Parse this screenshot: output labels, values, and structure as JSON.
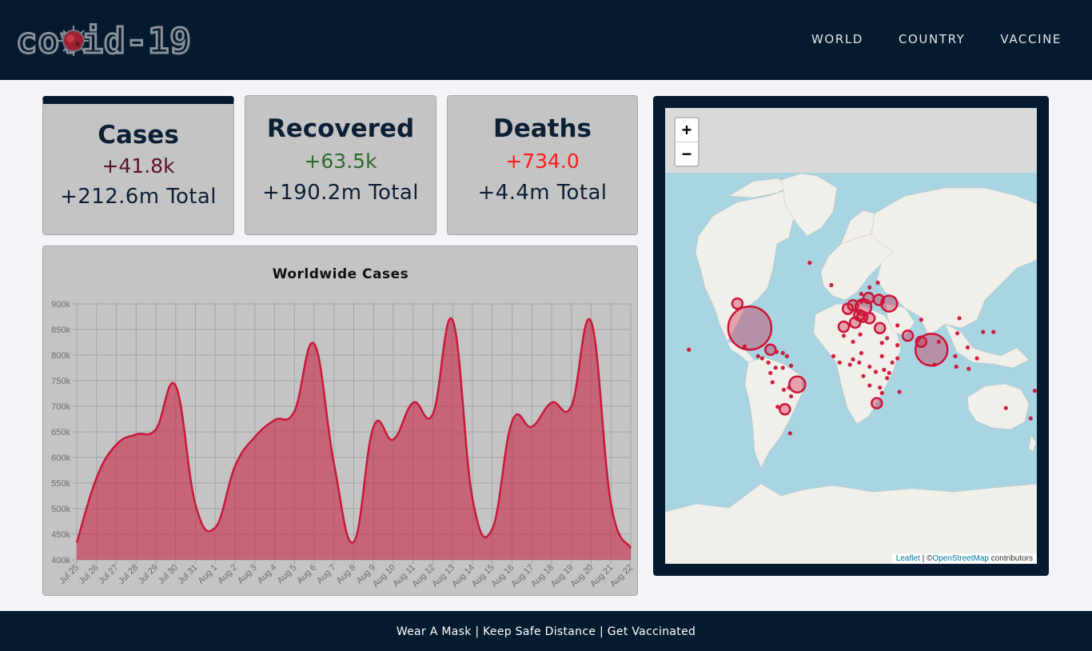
{
  "header": {
    "logo_text": "covid-19",
    "nav": [
      "WORLD",
      "COUNTRY",
      "VACCINE"
    ]
  },
  "stats": {
    "cases": {
      "title": "Cases",
      "new": "+41.8k",
      "total": "+212.6m Total",
      "new_color": "#5c1424"
    },
    "recovered": {
      "title": "Recovered",
      "new": "+63.5k",
      "total": "+190.2m Total",
      "new_color": "#2e6a2c"
    },
    "deaths": {
      "title": "Deaths",
      "new": "+734.0",
      "total": "+4.4m Total",
      "new_color": "#ff1a1a"
    }
  },
  "chart_data": {
    "type": "area",
    "title": "Worldwide Cases",
    "xlabel": "",
    "ylabel": "",
    "x": [
      "Jul 25",
      "Jul 26",
      "Jul 27",
      "Jul 28",
      "Jul 29",
      "Jul 30",
      "Jul 31",
      "Aug 1",
      "Aug 2",
      "Aug 3",
      "Aug 4",
      "Aug 5",
      "Aug 6",
      "Aug 7",
      "Aug 8",
      "Aug 9",
      "Aug 10",
      "Aug 11",
      "Aug 12",
      "Aug 13",
      "Aug 14",
      "Aug 15",
      "Aug 16",
      "Aug 17",
      "Aug 18",
      "Aug 19",
      "Aug 20",
      "Aug 21",
      "Aug 22"
    ],
    "values": [
      433000,
      560000,
      625000,
      645000,
      655000,
      740000,
      508000,
      463000,
      583000,
      640000,
      673000,
      690000,
      822000,
      588000,
      435000,
      660000,
      635000,
      707000,
      685000,
      868000,
      520000,
      460000,
      670000,
      660000,
      707000,
      700000,
      865000,
      510000,
      423000
    ],
    "ylim": [
      400000,
      900000
    ],
    "yticks": [
      "400k",
      "450k",
      "500k",
      "550k",
      "600k",
      "650k",
      "700k",
      "750k",
      "800k",
      "850k",
      "900k"
    ],
    "grid": true,
    "line_color": "#c8183a",
    "fill_color": "#c8183a"
  },
  "map": {
    "zoom_in": "+",
    "zoom_out": "−",
    "attribution_leaflet": "Leaflet",
    "attribution_sep": " | ©",
    "attribution_osm": "OpenStreetMap",
    "attribution_suffix": " contributors",
    "marker_color": "#cc1438",
    "markers": [
      {
        "lat": 39,
        "lon": -98,
        "size": 5
      },
      {
        "lat": 21,
        "lon": -78,
        "size": 2
      },
      {
        "lat": 55,
        "lon": 37,
        "size": 3
      },
      {
        "lat": 21,
        "lon": 78,
        "size": 4
      },
      {
        "lat": -12,
        "lon": -52,
        "size": 3
      },
      {
        "lat": 53,
        "lon": 12,
        "size": 3
      },
      {
        "lat": 47,
        "lon": 11,
        "size": 2
      },
      {
        "lat": 48,
        "lon": 8,
        "size": 2
      },
      {
        "lat": 46,
        "lon": 18,
        "size": 2
      },
      {
        "lat": 43,
        "lon": 4,
        "size": 2
      },
      {
        "lat": 39,
        "lon": 28,
        "size": 2
      },
      {
        "lat": 33,
        "lon": 55,
        "size": 2
      },
      {
        "lat": 28,
        "lon": 68,
        "size": 2
      },
      {
        "lat": 57,
        "lon": 27,
        "size": 2
      },
      {
        "lat": 58,
        "lon": 17,
        "size": 2
      },
      {
        "lat": 40,
        "lon": -7,
        "size": 2
      },
      {
        "lat": 52,
        "lon": -3,
        "size": 2
      },
      {
        "lat": 54,
        "lon": 2,
        "size": 2
      },
      {
        "lat": 55,
        "lon": -110,
        "size": 2
      },
      {
        "lat": 24,
        "lon": -103,
        "size": 1
      },
      {
        "lat": -34,
        "lon": -64,
        "size": 2
      },
      {
        "lat": -32,
        "lon": -71,
        "size": 1
      },
      {
        "lat": -10,
        "lon": -76,
        "size": 1
      },
      {
        "lat": 4,
        "lon": -73,
        "size": 1
      },
      {
        "lat": -1,
        "lon": -78,
        "size": 1
      },
      {
        "lat": 15,
        "lon": -62,
        "size": 1
      },
      {
        "lat": 6,
        "lon": -58,
        "size": 1
      },
      {
        "lat": 4,
        "lon": -66,
        "size": 1
      },
      {
        "lat": -29,
        "lon": 25,
        "size": 2
      },
      {
        "lat": 27,
        "lon": 30,
        "size": 1
      },
      {
        "lat": 31,
        "lon": 35,
        "size": 1
      },
      {
        "lat": 25,
        "lon": 45,
        "size": 1
      },
      {
        "lat": 13,
        "lon": 122,
        "size": 1
      },
      {
        "lat": 5,
        "lon": 102,
        "size": 1
      },
      {
        "lat": 15,
        "lon": 101,
        "size": 1
      },
      {
        "lat": 36,
        "lon": 128,
        "size": 1
      },
      {
        "lat": 36,
        "lon": 138,
        "size": 1
      },
      {
        "lat": 23,
        "lon": 113,
        "size": 1
      },
      {
        "lat": 46,
        "lon": 105,
        "size": 1
      },
      {
        "lat": 28,
        "lon": 85,
        "size": 1
      },
      {
        "lat": 7,
        "lon": 81,
        "size": 1
      },
      {
        "lat": 3,
        "lon": 114,
        "size": 1
      },
      {
        "lat": 63,
        "lon": 18,
        "size": 1
      },
      {
        "lat": 65,
        "lon": 26,
        "size": 1
      },
      {
        "lat": 60,
        "lon": 10,
        "size": 1
      },
      {
        "lat": 56,
        "lon": 10,
        "size": 1
      },
      {
        "lat": 41,
        "lon": 45,
        "size": 1
      },
      {
        "lat": 45,
        "lon": 68,
        "size": 1
      },
      {
        "lat": 9,
        "lon": 8,
        "size": 1
      },
      {
        "lat": -1,
        "lon": 37,
        "size": 1
      },
      {
        "lat": -15,
        "lon": 28,
        "size": 1
      },
      {
        "lat": -19,
        "lon": 47,
        "size": 1
      },
      {
        "lat": 15,
        "lon": -17,
        "size": 1
      },
      {
        "lat": 9,
        "lon": -11,
        "size": 1
      },
      {
        "lat": 7,
        "lon": -1,
        "size": 1
      },
      {
        "lat": 33,
        "lon": -7,
        "size": 1
      },
      {
        "lat": 28,
        "lon": 2,
        "size": 1
      },
      {
        "lat": 34,
        "lon": 9,
        "size": 1
      },
      {
        "lat": 15,
        "lon": 30,
        "size": 1
      },
      {
        "lat": 9,
        "lon": 40,
        "size": 1
      },
      {
        "lat": -6,
        "lon": 35,
        "size": 1
      },
      {
        "lat": -13,
        "lon": 18,
        "size": 1
      },
      {
        "lat": -20,
        "lon": 30,
        "size": 1
      },
      {
        "lat": 0,
        "lon": 24,
        "size": 1
      },
      {
        "lat": 5,
        "lon": 18,
        "size": 1
      },
      {
        "lat": 12,
        "lon": 2,
        "size": 1
      },
      {
        "lat": 18,
        "lon": 10,
        "size": 1
      },
      {
        "lat": -4,
        "lon": 12,
        "size": 1
      },
      {
        "lat": 2,
        "lon": 32,
        "size": 1
      },
      {
        "lat": 13,
        "lon": 45,
        "size": 1
      },
      {
        "lat": -33,
        "lon": 150,
        "size": 1
      },
      {
        "lat": -41,
        "lon": 174,
        "size": 1
      },
      {
        "lat": -18,
        "lon": 178,
        "size": 1
      },
      {
        "lat": -15,
        "lon": -60,
        "size": 1
      },
      {
        "lat": -23,
        "lon": -58,
        "size": 1
      },
      {
        "lat": -17,
        "lon": -65,
        "size": 1
      },
      {
        "lat": 19,
        "lon": -72,
        "size": 1
      },
      {
        "lat": 18,
        "lon": -66,
        "size": 1
      },
      {
        "lat": 13,
        "lon": -86,
        "size": 1
      },
      {
        "lat": 15,
        "lon": -90,
        "size": 1
      },
      {
        "lat": 9,
        "lon": -80,
        "size": 1
      },
      {
        "lat": 64,
        "lon": -19,
        "size": 1
      },
      {
        "lat": 72,
        "lon": -40,
        "size": 1
      },
      {
        "lat": 21,
        "lon": -157,
        "size": 1
      },
      {
        "lat": 35,
        "lon": 103,
        "size": 1
      },
      {
        "lat": -51,
        "lon": -59,
        "size": 1
      }
    ]
  },
  "footer": {
    "text": "Wear A Mask | Keep Safe Distance | Get Vaccinated"
  }
}
